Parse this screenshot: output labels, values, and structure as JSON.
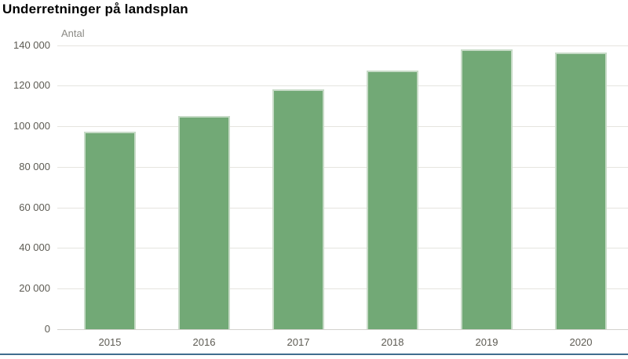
{
  "title": "Underretninger på landsplan",
  "colors": {
    "bar_fill": "#72a976",
    "bar_border": "#c7dbc7",
    "gridline": "#e5e4df",
    "baseline": "#d3d2cd",
    "bottom_rule": "#3f6d8e",
    "axis_text": "#5d5b53",
    "unit_text": "#8b8a85",
    "title_text": "#000000"
  },
  "chart_data": {
    "type": "bar",
    "title": "Underretninger på landsplan",
    "unit_label": "Antal",
    "xlabel": "",
    "ylabel": "Antal",
    "categories": [
      "2015",
      "2016",
      "2017",
      "2018",
      "2019",
      "2020"
    ],
    "values": [
      97500,
      105000,
      118000,
      127500,
      138000,
      136500
    ],
    "ylim": [
      0,
      140000
    ],
    "ytick_step": 20000,
    "ytick_labels": [
      "0",
      "20 000",
      "40 000",
      "60 000",
      "80 000",
      "100 000",
      "120 000",
      "140 000"
    ],
    "grid": "horizontal",
    "legend": "none"
  }
}
